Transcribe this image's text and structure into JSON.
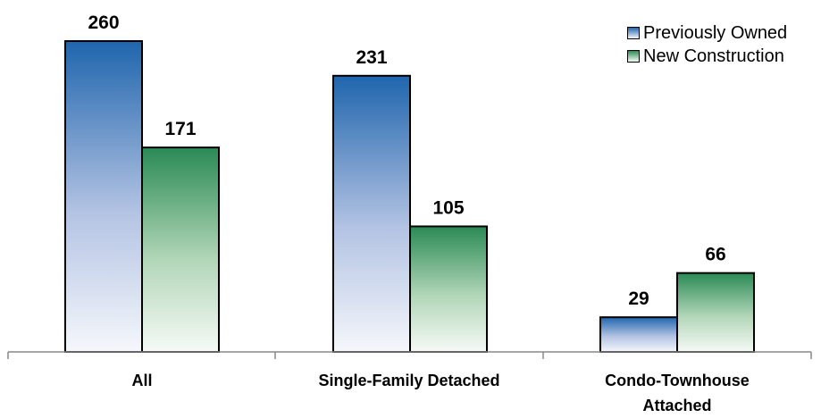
{
  "chart_data": {
    "type": "bar",
    "categories": [
      "All",
      "Single-Family Detached",
      "Condo-Townhouse\nAttached"
    ],
    "series": [
      {
        "name": "Previously Owned",
        "values": [
          260,
          231,
          29
        ],
        "color": "#1f65ad",
        "color_light": "#f5f7fb"
      },
      {
        "name": "New Construction",
        "values": [
          171,
          105,
          66
        ],
        "color": "#2a8a55",
        "color_light": "#f6faf6"
      }
    ],
    "ylim": [
      0,
      260
    ],
    "grid": false,
    "legend_position": "top-right",
    "data_labels": true
  }
}
